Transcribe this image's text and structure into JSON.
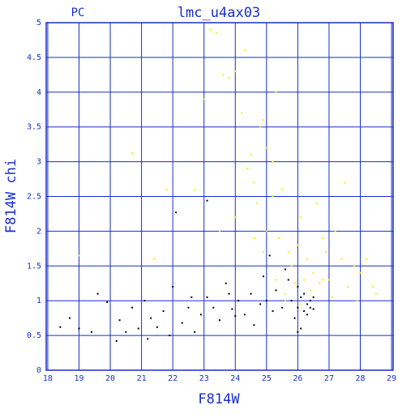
{
  "chart_data": {
    "type": "scatter",
    "title": "lmc_u4ax03",
    "subtitle": "PC",
    "x_label": "F814W",
    "y_label": "F814W chi",
    "xlim": [
      17.95,
      29.05
    ],
    "ylim": [
      0,
      5
    ],
    "xticks": [
      18,
      19,
      20,
      21,
      22,
      23,
      24,
      25,
      26,
      27,
      28,
      29
    ],
    "yticks": [
      0,
      0.5,
      1,
      1.5,
      2,
      2.5,
      3,
      3.5,
      4,
      4.5,
      5
    ],
    "grid": true,
    "series": [
      {
        "color": "#000000",
        "x": [
          18.4,
          18.7,
          19.0,
          19.4,
          19.6,
          19.9,
          20.2,
          20.5,
          20.7,
          20.9,
          21.1,
          21.3,
          21.5,
          21.7,
          21.9,
          22.0,
          22.1,
          22.3,
          22.5,
          22.7,
          22.9,
          23.1,
          23.1,
          23.3,
          23.5,
          23.7,
          23.9,
          24.1,
          24.3,
          24.5,
          24.6,
          24.8,
          24.9,
          25.0,
          25.2,
          25.3,
          25.5,
          25.6,
          25.8,
          25.9,
          26.0,
          26.0,
          26.1,
          26.2,
          26.2,
          26.3,
          26.3,
          26.4,
          26.4,
          26.5,
          26.1,
          25.7,
          24.0,
          21.2,
          22.6,
          20.3,
          23.8,
          25.1,
          26.0,
          26.5
        ],
        "values": [
          0.62,
          0.75,
          0.6,
          0.55,
          1.1,
          0.98,
          0.42,
          0.55,
          0.9,
          0.6,
          1.0,
          0.75,
          0.62,
          0.85,
          0.5,
          1.2,
          2.27,
          0.68,
          0.9,
          0.55,
          0.8,
          1.05,
          2.44,
          0.9,
          0.72,
          1.25,
          0.88,
          1.0,
          0.8,
          1.1,
          0.65,
          0.95,
          1.35,
          1.0,
          0.85,
          1.15,
          0.9,
          1.45,
          1.0,
          0.75,
          1.2,
          0.9,
          1.05,
          0.85,
          1.1,
          0.95,
          0.8,
          1.0,
          0.9,
          0.88,
          0.6,
          1.3,
          0.78,
          0.45,
          1.05,
          0.72,
          1.1,
          1.65,
          0.55,
          1.05
        ]
      },
      {
        "color": "#f0f000",
        "x": [
          23.2,
          23.4,
          23.6,
          23.8,
          24.0,
          24.2,
          24.5,
          24.6,
          24.8,
          24.9,
          24.4,
          24.0,
          24.7,
          25.0,
          25.2,
          25.4,
          25.5,
          25.7,
          25.8,
          26.0,
          26.1,
          26.3,
          26.5,
          26.6,
          26.8,
          27.0,
          27.2,
          27.4,
          27.6,
          27.8,
          28.0,
          28.2,
          28.5,
          20.7,
          21.8,
          22.7,
          23.5,
          19.0,
          21.4,
          25.3,
          25.6,
          25.9,
          26.2,
          26.4,
          26.7,
          27.1,
          25.0,
          25.3,
          24.3,
          26.9,
          27.5,
          28.4,
          25.6,
          26.1,
          23.0,
          24.9,
          26.8,
          27.9,
          25.2,
          24.6
        ],
        "values": [
          4.9,
          4.85,
          4.25,
          4.2,
          4.3,
          3.7,
          3.1,
          2.7,
          3.5,
          3.6,
          2.9,
          2.2,
          2.4,
          2.0,
          2.5,
          1.9,
          2.6,
          1.7,
          1.5,
          1.8,
          2.2,
          1.6,
          1.4,
          2.4,
          1.9,
          1.3,
          2.0,
          1.6,
          1.2,
          1.5,
          1.4,
          1.6,
          1.1,
          3.12,
          2.6,
          2.6,
          2.0,
          1.65,
          1.6,
          1.3,
          1.1,
          1.25,
          1.3,
          1.15,
          1.25,
          1.05,
          3.2,
          4.0,
          4.6,
          1.7,
          2.7,
          1.2,
          1.0,
          0.95,
          3.9,
          1.7,
          1.3,
          1.0,
          3.0,
          1.9
        ]
      }
    ]
  }
}
